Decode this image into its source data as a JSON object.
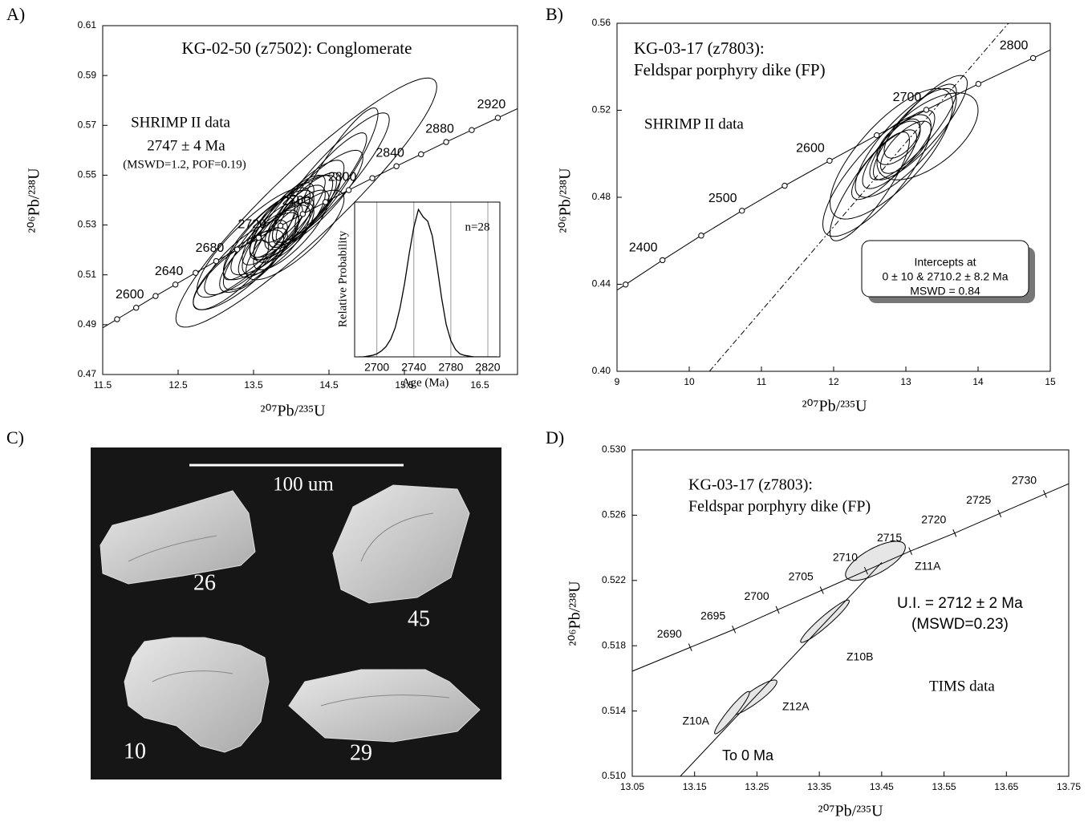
{
  "chart_data": [
    {
      "type": "concordia",
      "panel_label": "A)",
      "title": [
        "KG-02-50 (z7502): Conglomerate"
      ],
      "annotations": [
        "SHRIMP II  data",
        "2747 ± 4 Ma",
        "(MSWD=1.2, POF=0.19)"
      ],
      "x_label": "²⁰⁷Pb/²³⁵U",
      "y_label": "²⁰⁶Pb/²³⁸U",
      "xlim": [
        11.5,
        17.0
      ],
      "xticks": [
        11.5,
        12.5,
        13.5,
        14.5,
        15.5,
        16.5
      ],
      "ylim": [
        0.47,
        0.61
      ],
      "yticks": [
        0.47,
        0.49,
        0.51,
        0.53,
        0.55,
        0.57,
        0.59,
        0.61
      ],
      "concordia": {
        "marker": "circle",
        "x": [
          11.691,
          11.944,
          12.201,
          12.464,
          12.732,
          13.005,
          13.283,
          13.567,
          13.857,
          14.153,
          14.454,
          14.762,
          15.075,
          15.395,
          15.721,
          16.054,
          16.393,
          16.739
        ],
        "y": [
          0.4922,
          0.4968,
          0.5015,
          0.5061,
          0.5108,
          0.5155,
          0.5202,
          0.5249,
          0.5297,
          0.5344,
          0.5392,
          0.544,
          0.5488,
          0.5536,
          0.5584,
          0.5633,
          0.5681,
          0.573
        ],
        "labels": [
          null,
          2600,
          null,
          2640,
          null,
          2680,
          null,
          2720,
          null,
          2760,
          null,
          2800,
          null,
          2840,
          null,
          2880,
          null,
          2920
        ]
      },
      "ellipses": {
        "fill": "none",
        "x": [
          14.2,
          13.5,
          13.7,
          13.9,
          14.0,
          13.6,
          13.8,
          14.1,
          14.3,
          13.4,
          13.9,
          14.0,
          13.7,
          14.4,
          14.1,
          13.8,
          13.5,
          14.0,
          13.6,
          14.2,
          13.3,
          14.6,
          13.9,
          13.75,
          14.05,
          13.2,
          14.5,
          13.95
        ],
        "y": [
          0.539,
          0.523,
          0.526,
          0.53,
          0.533,
          0.52,
          0.524,
          0.536,
          0.54,
          0.517,
          0.527,
          0.528,
          0.522,
          0.545,
          0.534,
          0.528,
          0.516,
          0.531,
          0.525,
          0.537,
          0.512,
          0.552,
          0.532,
          0.529,
          0.526,
          0.51,
          0.548,
          0.535
        ],
        "x_err": [
          1.73,
          0.75,
          0.6,
          0.7,
          0.55,
          0.5,
          0.45,
          0.6,
          0.65,
          0.55,
          0.4,
          0.5,
          0.4,
          0.6,
          0.35,
          0.35,
          0.45,
          0.3,
          0.5,
          0.45,
          0.6,
          0.55,
          0.55,
          0.3,
          0.65,
          0.5,
          0.8,
          0.35
        ],
        "y_err": [
          0.05,
          0.022,
          0.018,
          0.02,
          0.017,
          0.016,
          0.014,
          0.02,
          0.02,
          0.015,
          0.012,
          0.016,
          0.013,
          0.022,
          0.012,
          0.011,
          0.013,
          0.01,
          0.017,
          0.014,
          0.016,
          0.025,
          0.018,
          0.012,
          0.018,
          0.014,
          0.027,
          0.012
        ],
        "rho": [
          0.93,
          0.85,
          0.8,
          0.85,
          0.8,
          0.8,
          0.75,
          0.85,
          0.85,
          0.8,
          0.7,
          0.8,
          0.75,
          0.9,
          0.7,
          0.7,
          0.75,
          0.7,
          0.85,
          0.8,
          0.8,
          0.9,
          0.85,
          0.7,
          0.8,
          0.8,
          0.9,
          0.75
        ]
      }
    },
    {
      "type": "line",
      "x_label": "Age (Ma)",
      "y_label": "Relative Probability",
      "annotations": [
        "n=28"
      ],
      "xlim": [
        2676,
        2833
      ],
      "xticks": [
        2700,
        2740,
        2780,
        2820
      ],
      "grid": true,
      "ylim": [
        0,
        1.05
      ],
      "color": "#000000",
      "x": [
        2680,
        2685,
        2690,
        2695,
        2700,
        2705,
        2710,
        2715,
        2720,
        2725,
        2730,
        2735,
        2740,
        2745,
        2750,
        2755,
        2760,
        2765,
        2770,
        2775,
        2780,
        2785,
        2790,
        2795,
        2800,
        2805,
        2810,
        2815,
        2820,
        2825,
        2830
      ],
      "values": [
        0,
        0,
        0.005,
        0.01,
        0.02,
        0.04,
        0.07,
        0.12,
        0.2,
        0.33,
        0.5,
        0.7,
        0.88,
        1.0,
        0.95,
        0.92,
        0.82,
        0.62,
        0.4,
        0.22,
        0.11,
        0.05,
        0.02,
        0.01,
        0.005,
        0,
        0,
        0,
        0,
        0,
        0
      ]
    },
    {
      "type": "concordia",
      "panel_label": "B)",
      "title": [
        "KG-03-17 (z7803):",
        "Feldspar porphyry dike (FP)"
      ],
      "annotations": [
        "SHRIMP II  data"
      ],
      "intercept_box": [
        "Intercepts at",
        "0 ± 10 & 2710.2 ± 8.2 Ma",
        "MSWD = 0.84"
      ],
      "x_label": "²⁰⁷Pb/²³⁵U",
      "y_label": "²⁰⁶Pb/²³⁸U",
      "xlim": [
        9,
        15
      ],
      "xticks": [
        9,
        10,
        11,
        12,
        13,
        14,
        15
      ],
      "ylim": [
        0.4,
        0.56
      ],
      "yticks": [
        {
          "value": 0.4,
          "label": "0.40"
        },
        0.44,
        0.48,
        0.52,
        0.56
      ],
      "concordia": {
        "marker": "circle",
        "x": [
          9.119,
          9.63,
          10.166,
          10.73,
          11.322,
          11.944,
          12.597,
          13.283,
          14.004,
          14.762
        ],
        "y": [
          0.4399,
          0.4511,
          0.4624,
          0.4738,
          0.4853,
          0.4968,
          0.5085,
          0.5202,
          0.5321,
          0.544
        ],
        "labels": [
          null,
          2400,
          null,
          2500,
          null,
          2600,
          null,
          2700,
          null,
          2800
        ]
      },
      "discordia": {
        "style": "dashdot",
        "x": [
          10.28,
          14.42
        ],
        "y": [
          0.4,
          0.56
        ]
      },
      "ellipses": {
        "fill": "none",
        "x": [
          12.8,
          13.0,
          12.9,
          13.1,
          12.6,
          13.2,
          12.9,
          13.0,
          12.5,
          13.3,
          12.95,
          12.7
        ],
        "y": [
          0.5,
          0.505,
          0.502,
          0.51,
          0.49,
          0.512,
          0.505,
          0.503,
          0.485,
          0.508,
          0.507,
          0.495
        ],
        "x_err": [
          0.85,
          0.7,
          0.5,
          0.6,
          0.75,
          0.65,
          0.3,
          0.35,
          0.55,
          0.7,
          0.25,
          0.45
        ],
        "y_err": [
          0.03,
          0.025,
          0.018,
          0.022,
          0.028,
          0.024,
          0.01,
          0.012,
          0.025,
          0.02,
          0.009,
          0.016
        ],
        "rho": [
          0.75,
          0.8,
          0.8,
          0.85,
          0.8,
          0.85,
          0.6,
          0.7,
          0.85,
          0.6,
          0.6,
          0.8
        ]
      }
    },
    {
      "type": "concordia",
      "panel_label": "D)",
      "title": [
        "KG-03-17 (z7803):",
        "Feldspar porphyry dike (FP)"
      ],
      "annotations": [
        "U.I. = 2712 ± 2 Ma",
        "(MSWD=0.23)",
        "TIMS  data",
        "To 0 Ma"
      ],
      "x_label": "²⁰⁷Pb/²³⁵U",
      "y_label": "²⁰⁶Pb/²³⁸U",
      "xlim": [
        13.05,
        13.75
      ],
      "xticks": [
        13.05,
        13.15,
        13.25,
        13.35,
        13.45,
        13.55,
        13.65,
        13.75
      ],
      "ylim": [
        0.51,
        0.53
      ],
      "yticks": [
        {
          "value": 0.51,
          "label": "0.510"
        },
        0.514,
        0.518,
        0.522,
        0.526,
        {
          "value": 0.53,
          "label": "0.530"
        }
      ],
      "concordia": {
        "marker": "tick",
        "x": [
          13.143,
          13.213,
          13.283,
          13.354,
          13.425,
          13.496,
          13.567,
          13.639,
          13.712
        ],
        "y": [
          0.5179,
          0.519,
          0.5202,
          0.5214,
          0.5226,
          0.5238,
          0.5249,
          0.5261,
          0.5273
        ],
        "labels": [
          2690,
          2695,
          2700,
          2705,
          2710,
          2715,
          2720,
          2725,
          2730
        ]
      },
      "discordia": {
        "style": "solid",
        "x": [
          13.127,
          13.45
        ],
        "y": [
          0.51,
          0.5231
        ]
      },
      "ellipses": {
        "fill": "#e6e6e6",
        "names": [
          "Z11A",
          "Z10B",
          "Z12A",
          "Z10A"
        ],
        "x": [
          13.44,
          13.359,
          13.243,
          13.21
        ],
        "y": [
          0.5232,
          0.5195,
          0.5148,
          0.5139
        ],
        "x_err": [
          0.048,
          0.039,
          0.039,
          0.028
        ],
        "y_err": [
          0.0012,
          0.0013,
          0.0011,
          0.0013
        ],
        "rho": [
          0.7,
          0.95,
          0.9,
          0.95
        ]
      }
    }
  ],
  "image_panel": {
    "panel_label": "C)",
    "scale_label": "100 um",
    "grain_labels": [
      "26",
      "45",
      "10",
      "29"
    ]
  }
}
